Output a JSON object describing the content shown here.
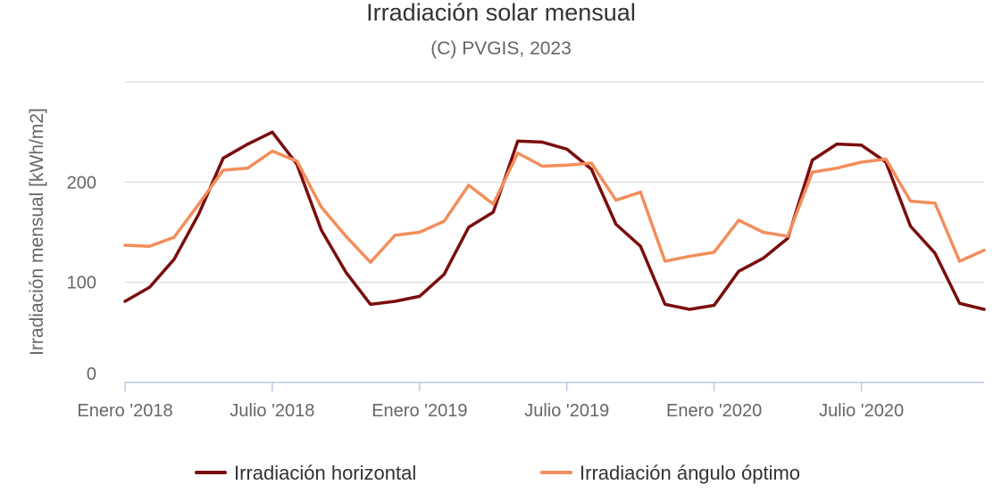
{
  "chart_data": {
    "type": "line",
    "title": "Irradiación solar mensual",
    "subtitle": "(C) PVGIS, 2023",
    "ylabel": "Irradiación mensual [kWh/m2]",
    "xlabel": "",
    "ylim": [
      0,
      300
    ],
    "yticks": [
      0,
      100,
      200
    ],
    "grid": true,
    "legend_position": "bottom",
    "x": [
      "2018-01",
      "2018-02",
      "2018-03",
      "2018-04",
      "2018-05",
      "2018-06",
      "2018-07",
      "2018-08",
      "2018-09",
      "2018-10",
      "2018-11",
      "2018-12",
      "2019-01",
      "2019-02",
      "2019-03",
      "2019-04",
      "2019-05",
      "2019-06",
      "2019-07",
      "2019-08",
      "2019-09",
      "2019-10",
      "2019-11",
      "2019-12",
      "2020-01",
      "2020-02",
      "2020-03",
      "2020-04",
      "2020-05",
      "2020-06",
      "2020-07",
      "2020-08",
      "2020-09",
      "2020-10",
      "2020-11",
      "2020-12"
    ],
    "xtick_labels": [
      {
        "index": 0,
        "label": "Enero '2018"
      },
      {
        "index": 6,
        "label": "Julio '2018"
      },
      {
        "index": 12,
        "label": "Enero '2019"
      },
      {
        "index": 18,
        "label": "Julio '2019"
      },
      {
        "index": 24,
        "label": "Enero '2020"
      },
      {
        "index": 30,
        "label": "Julio '2020"
      }
    ],
    "series": [
      {
        "name": "Irradiación horizontal",
        "color": "#7a0d0d",
        "values": [
          81,
          95,
          123,
          168,
          224,
          238,
          250,
          218,
          152,
          110,
          78,
          81,
          86,
          108,
          155,
          170,
          241,
          240,
          233,
          213,
          158,
          136,
          78,
          73,
          77,
          111,
          124,
          144,
          222,
          238,
          237,
          220,
          156,
          129,
          79,
          73
        ]
      },
      {
        "name": "Irradiación ángulo óptimo",
        "color": "#f28e5b",
        "values": [
          137,
          136,
          145,
          178,
          212,
          214,
          231,
          221,
          175,
          146,
          120,
          147,
          150,
          161,
          197,
          178,
          229,
          216,
          217,
          219,
          182,
          190,
          121,
          126,
          130,
          162,
          150,
          146,
          210,
          214,
          220,
          223,
          181,
          179,
          121,
          132
        ]
      }
    ]
  }
}
